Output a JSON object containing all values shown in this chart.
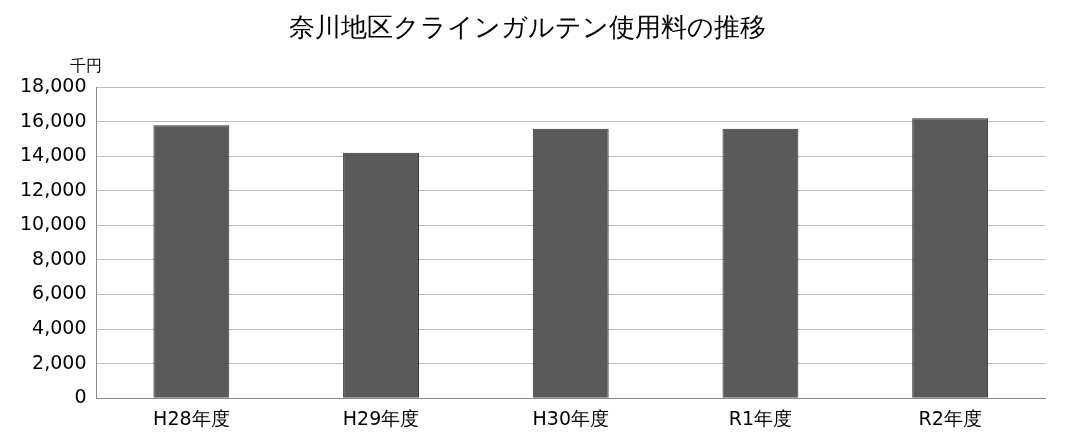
{
  "chart_data": {
    "type": "bar",
    "title": "奈川地区クラインガルテン使用料の推移",
    "ylabel": "千円",
    "categories": [
      "H28年度",
      "H29年度",
      "H30年度",
      "R1年度",
      "R2年度"
    ],
    "values": [
      15800,
      14200,
      15600,
      15600,
      16200
    ],
    "color": "#5a5a5a",
    "ylim": [
      0,
      18000
    ],
    "yticks": [
      0,
      {
        "value": 2000,
        "label": "2,000"
      },
      {
        "value": 4000,
        "label": "4,000"
      },
      {
        "value": 6000,
        "label": "6,000"
      },
      {
        "value": 8000,
        "label": "8,000"
      },
      {
        "value": 10000,
        "label": "10,000"
      },
      {
        "value": 12000,
        "label": "12,000"
      },
      {
        "value": 14000,
        "label": "14,000"
      },
      {
        "value": 16000,
        "label": "16,000"
      },
      {
        "value": 18000,
        "label": "18,000"
      }
    ],
    "grid": "y",
    "legend": false
  }
}
